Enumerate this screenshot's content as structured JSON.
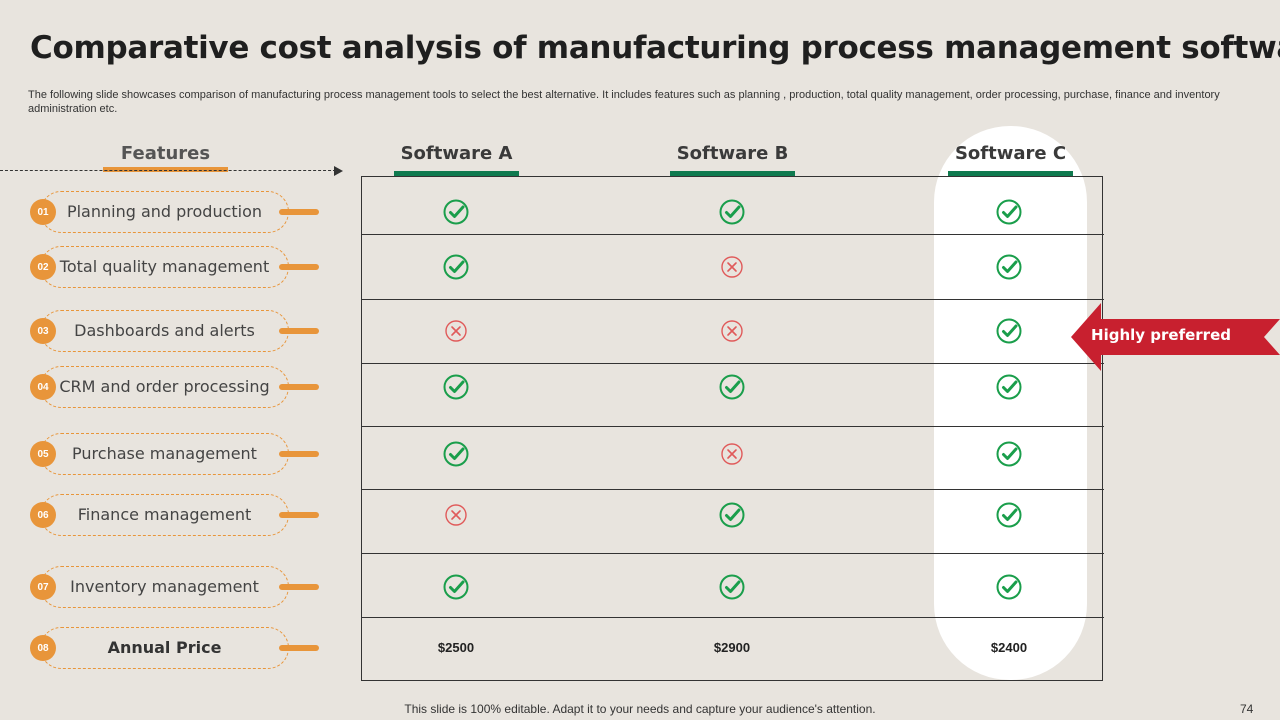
{
  "slide": {
    "title": "Comparative cost analysis of manufacturing process management software",
    "subtitle": "The following slide showcases comparison of manufacturing process management tools to select the best alternative. It includes features such as planning , production, total quality management, order processing, purchase, finance and inventory administration etc.",
    "footer": "This slide is 100% editable. Adapt it to your needs and capture your audience's attention.",
    "page_number": "74"
  },
  "table": {
    "features_header": "Features",
    "columns": [
      "Software A",
      "Software B",
      "Software C"
    ],
    "rows": [
      {
        "num": "01",
        "label": "Planning and production",
        "values": [
          "check",
          "check",
          "check"
        ]
      },
      {
        "num": "02",
        "label": "Total quality management",
        "values": [
          "check",
          "cross",
          "check"
        ]
      },
      {
        "num": "03",
        "label": "Dashboards and alerts",
        "values": [
          "cross",
          "cross",
          "check"
        ]
      },
      {
        "num": "04",
        "label": "CRM and order processing",
        "values": [
          "check",
          "check",
          "check"
        ]
      },
      {
        "num": "05",
        "label": "Purchase management",
        "values": [
          "check",
          "cross",
          "check"
        ]
      },
      {
        "num": "06",
        "label": "Finance management",
        "values": [
          "cross",
          "check",
          "check"
        ]
      },
      {
        "num": "07",
        "label": "Inventory management",
        "values": [
          "check",
          "check",
          "check"
        ]
      }
    ],
    "price_row": {
      "num": "08",
      "label": "Annual Price",
      "values": [
        "$2500",
        "$2900",
        "$2400"
      ]
    }
  },
  "badge": {
    "label": "Highly preferred"
  },
  "colors": {
    "accent_orange": "#e8953a",
    "accent_green": "#0f7a4f",
    "check_green": "#1a9e4b",
    "cross_red": "#e05a5a",
    "badge_red": "#c8202f",
    "background": "#e8e4de"
  }
}
